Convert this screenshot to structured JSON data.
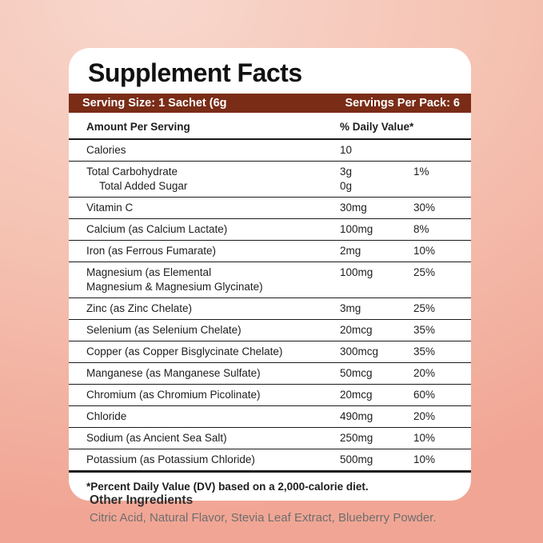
{
  "colors": {
    "background_top": "#f8d7cd",
    "background_mid": "#f5c3b3",
    "background_bottom": "#f1a695",
    "bar": "#7a2c17",
    "card": "#ffffff",
    "ink": "#1d1d1d",
    "rule": "#1a1a1a",
    "muted": "#6e6e6e"
  },
  "card": {
    "title": "Supplement Facts",
    "serving_bar": {
      "serving_size": "Serving Size: 1 Sachet (6g",
      "servings_per_pack": "Servings Per Pack: 6"
    },
    "table": {
      "header": {
        "amount": "Amount Per Serving",
        "daily_value": "% Daily Value*"
      },
      "rows": [
        {
          "label": "Calories",
          "amount": "10",
          "dv": ""
        },
        {
          "label": "Total Carbohydrate",
          "sub_label": "Total Added Sugar",
          "amount": "3g",
          "sub_amount": "0g",
          "dv": "1%"
        },
        {
          "label": "Vitamin C",
          "amount": "30mg",
          "dv": "30%"
        },
        {
          "label": "Calcium (as Calcium Lactate)",
          "amount": "100mg",
          "dv": "8%"
        },
        {
          "label": "Iron (as Ferrous Fumarate)",
          "amount": "2mg",
          "dv": "10%"
        },
        {
          "label": "Magnesium (as Elemental",
          "label_line2": "Magnesium & Magnesium Glycinate)",
          "amount": "100mg",
          "dv": "25%"
        },
        {
          "label": "Zinc (as Zinc Chelate)",
          "amount": "3mg",
          "dv": "25%"
        },
        {
          "label": "Selenium (as Selenium Chelate)",
          "amount": "20mcg",
          "dv": "35%"
        },
        {
          "label": "Copper (as Copper Bisglycinate Chelate)",
          "amount": "300mcg",
          "dv": "35%"
        },
        {
          "label": "Manganese (as Manganese Sulfate)",
          "amount": "50mcg",
          "dv": "20%"
        },
        {
          "label": "Chromium (as Chromium Picolinate)",
          "amount": "20mcg",
          "dv": "60%"
        },
        {
          "label": "Chloride",
          "amount": "490mg",
          "dv": "20%"
        },
        {
          "label": "Sodium (as Ancient Sea Salt)",
          "amount": "250mg",
          "dv": "10%"
        },
        {
          "label": "Potassium (as Potassium Chloride)",
          "amount": "500mg",
          "dv": "10%"
        }
      ],
      "footnote": "*Percent Daily Value (DV) based on a 2,000-calorie diet."
    }
  },
  "other_ingredients": {
    "heading": "Other Ingredients",
    "text": "Citric Acid, Natural Flavor, Stevia Leaf Extract, Blueberry Powder."
  }
}
